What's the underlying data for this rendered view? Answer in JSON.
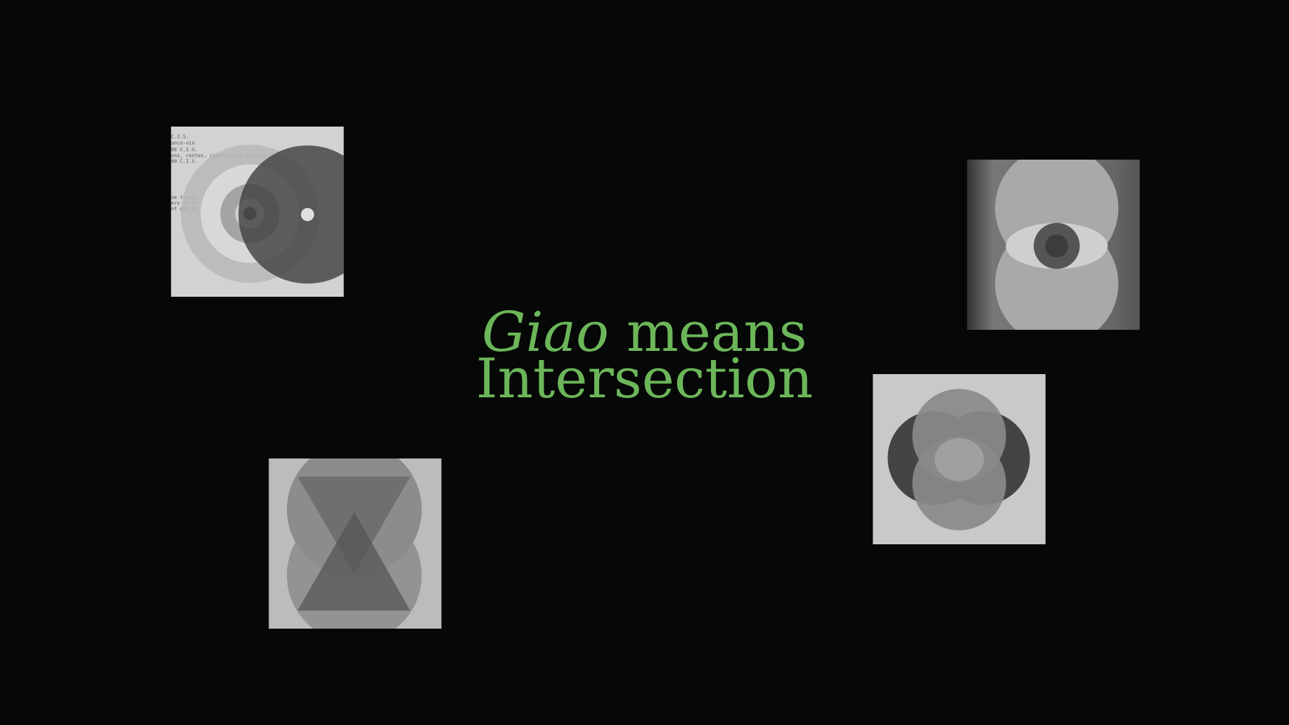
{
  "headline": {
    "italic": "Giao",
    "rest": "means",
    "line2": "Intersection"
  },
  "artwork_1": {
    "typed_lines": [
      "C.I.S.",
      "unce-vie",
      "DE C.I.S.",
      "ons, rentes, capitaux ou valeurs",
      "00 C.I.S.",
      "ne fiscal",
      "ers et dr",
      "nt qui e"
    ]
  }
}
